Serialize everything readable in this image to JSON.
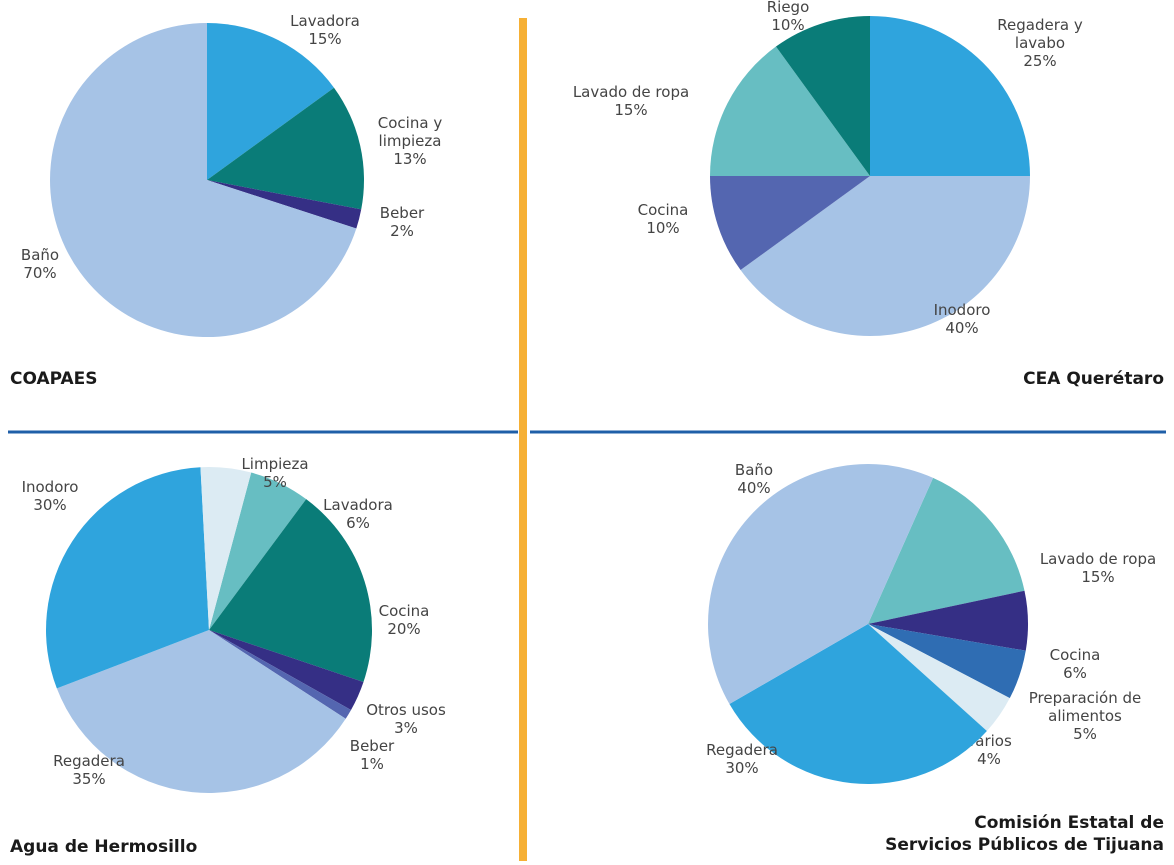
{
  "colors": {
    "light_blue": "#a6c3e6",
    "sky_blue": "#2fa4dd",
    "teal": "#0a7c78",
    "navy": "#352f85",
    "purple_blue": "#5466b0",
    "light_teal": "#67bec2",
    "pale_blue": "#dcebf3",
    "mid_blue": "#2f6db3",
    "vertical_divider": "#f6b035",
    "horizontal_divider": "#1f5fa8"
  },
  "chart_data": [
    {
      "type": "pie",
      "title": "COAPAES",
      "slices": [
        {
          "label": [
            "Lavadora",
            "15%"
          ],
          "value": 15,
          "color": "sky_blue"
        },
        {
          "label": [
            "Cocina y",
            "limpieza",
            "13%"
          ],
          "value": 13,
          "color": "teal"
        },
        {
          "label": [
            "Beber",
            "2%"
          ],
          "value": 2,
          "color": "navy"
        },
        {
          "label": [
            "Baño",
            "70%"
          ],
          "value": 70,
          "color": "light_blue"
        }
      ]
    },
    {
      "type": "pie",
      "title": "CEA Querétaro",
      "slices": [
        {
          "label": [
            "Regadera y",
            "lavabo",
            "25%"
          ],
          "value": 25,
          "color": "sky_blue"
        },
        {
          "label": [
            "Inodoro",
            "40%"
          ],
          "value": 40,
          "color": "light_blue"
        },
        {
          "label": [
            "Cocina",
            "10%"
          ],
          "value": 10,
          "color": "purple_blue"
        },
        {
          "label": [
            "Lavado de ropa",
            "15%"
          ],
          "value": 15,
          "color": "light_teal"
        },
        {
          "label": [
            "Riego",
            "10%"
          ],
          "value": 10,
          "color": "teal"
        }
      ]
    },
    {
      "type": "pie",
      "title": "Agua de Hermosillo",
      "slices": [
        {
          "label": [
            "Lavadora",
            "6%"
          ],
          "value": 6,
          "color": "light_teal"
        },
        {
          "label": [
            "Cocina",
            "20%"
          ],
          "value": 20,
          "color": "teal"
        },
        {
          "label": [
            "Otros usos",
            "3%"
          ],
          "value": 3,
          "color": "navy"
        },
        {
          "label": [
            "Beber",
            "1%"
          ],
          "value": 1,
          "color": "purple_blue"
        },
        {
          "label": [
            "Regadera",
            "35%"
          ],
          "value": 35,
          "color": "light_blue"
        },
        {
          "label": [
            "Inodoro",
            "30%"
          ],
          "value": 30,
          "color": "sky_blue"
        },
        {
          "label": [
            "Limpieza",
            "5%"
          ],
          "value": 5,
          "color": "pale_blue"
        }
      ]
    },
    {
      "type": "pie",
      "title": "Comisión Estatal de Servicios Públicos de Tijuana",
      "title_lines": [
        "Comisión Estatal de",
        "Servicios Públicos de Tijuana"
      ],
      "slices": [
        {
          "label": [
            "Lavado de ropa",
            "15%"
          ],
          "value": 15,
          "color": "light_teal"
        },
        {
          "label": [
            "Cocina",
            "6%"
          ],
          "value": 6,
          "color": "navy"
        },
        {
          "label": [
            "Preparación de",
            "alimentos",
            "5%"
          ],
          "value": 5,
          "color": "mid_blue"
        },
        {
          "label": [
            "Varios",
            "4%"
          ],
          "value": 4,
          "color": "pale_blue"
        },
        {
          "label": [
            "Regadera",
            "30%"
          ],
          "value": 30,
          "color": "sky_blue"
        },
        {
          "label": [
            "Baño",
            "40%"
          ],
          "value": 40,
          "color": "light_blue"
        }
      ]
    }
  ]
}
